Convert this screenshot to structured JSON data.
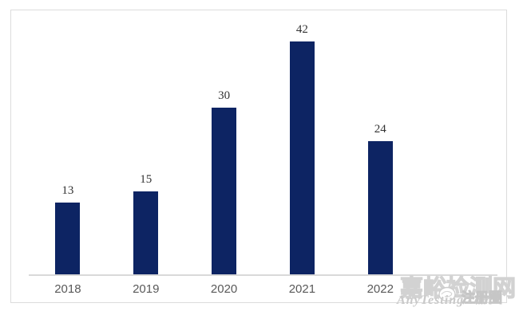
{
  "chart_data": {
    "type": "bar",
    "categories": [
      "2018",
      "2019",
      "2020",
      "2021",
      "2022"
    ],
    "values": [
      13,
      15,
      30,
      42,
      24
    ],
    "title": "",
    "xlabel": "",
    "ylabel": "",
    "ylim": [
      0,
      48
    ],
    "grid": false,
    "legend": false,
    "bar_color": "#0d2463",
    "axis_line_color": "#d9d9d9",
    "value_label_color": "#333333",
    "tick_label_color": "#595959",
    "frame_border_color": "#dcdcdc"
  },
  "watermark": {
    "site_name": "嘉峪检测网",
    "site_url": "AnyTesting.com",
    "badge_label": "注册圈",
    "logo_icon": "hand-circle-icon"
  }
}
